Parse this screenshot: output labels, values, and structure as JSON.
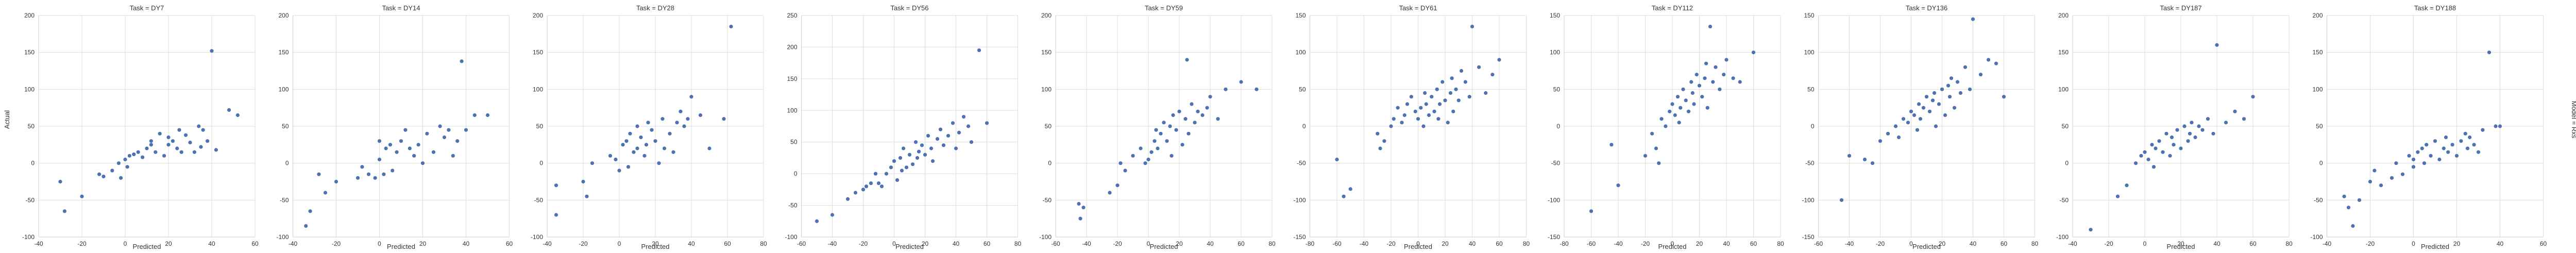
{
  "figure": {
    "ylabel": "Actual",
    "right_label": "Model = Rxs"
  },
  "colors": {
    "point": "#4c72b0",
    "grid": "#dddddd",
    "axis": "#cccccc"
  },
  "chart_data": [
    {
      "type": "scatter",
      "title": "Task = DY7",
      "xlabel": "Predicted",
      "ylabel": "Actual",
      "xlim": [
        -40,
        60
      ],
      "ylim": [
        -100,
        200
      ],
      "xticks": [
        -40,
        -20,
        0,
        20,
        40,
        60
      ],
      "yticks": [
        -100,
        -50,
        0,
        50,
        100,
        150,
        200
      ],
      "x": [
        -30,
        -28,
        -20,
        -12,
        -10,
        -6,
        -3,
        -2,
        0,
        1,
        2,
        4,
        6,
        8,
        10,
        12,
        12,
        14,
        16,
        18,
        20,
        20,
        22,
        24,
        25,
        26,
        28,
        30,
        32,
        34,
        35,
        36,
        38,
        40,
        42,
        48,
        52
      ],
      "y": [
        -25,
        -65,
        -45,
        -15,
        -18,
        -10,
        0,
        -20,
        5,
        -5,
        10,
        12,
        15,
        8,
        20,
        25,
        30,
        15,
        40,
        10,
        25,
        35,
        30,
        20,
        45,
        15,
        38,
        28,
        15,
        50,
        22,
        45,
        30,
        152,
        18,
        72,
        65
      ]
    },
    {
      "type": "scatter",
      "title": "Task = DY14",
      "xlabel": "Predicted",
      "ylabel": "Actual",
      "xlim": [
        -40,
        60
      ],
      "ylim": [
        -100,
        200
      ],
      "xticks": [
        -40,
        -20,
        0,
        20,
        40,
        60
      ],
      "yticks": [
        -100,
        -50,
        0,
        50,
        100,
        150,
        200
      ],
      "x": [
        -34,
        -32,
        -28,
        -25,
        -20,
        -10,
        -8,
        -5,
        -2,
        0,
        0,
        2,
        3,
        5,
        6,
        8,
        10,
        12,
        14,
        16,
        18,
        20,
        22,
        25,
        28,
        30,
        32,
        34,
        36,
        38,
        40,
        44,
        50
      ],
      "y": [
        -85,
        -65,
        -15,
        -40,
        -25,
        -20,
        -5,
        -15,
        -20,
        30,
        5,
        -15,
        20,
        25,
        -10,
        15,
        30,
        45,
        20,
        10,
        25,
        0,
        40,
        15,
        50,
        35,
        45,
        10,
        30,
        138,
        45,
        65,
        65
      ]
    },
    {
      "type": "scatter",
      "title": "Task = DY28",
      "xlabel": "Predicted",
      "ylabel": "Actual",
      "xlim": [
        -40,
        80
      ],
      "ylim": [
        -100,
        200
      ],
      "xticks": [
        -40,
        -20,
        0,
        20,
        40,
        60,
        80
      ],
      "yticks": [
        -100,
        -50,
        0,
        50,
        100,
        150,
        200
      ],
      "x": [
        -35,
        -35,
        -20,
        -18,
        -15,
        -5,
        -2,
        0,
        2,
        4,
        5,
        6,
        8,
        10,
        10,
        12,
        14,
        15,
        16,
        18,
        20,
        22,
        24,
        25,
        28,
        30,
        32,
        34,
        36,
        38,
        40,
        45,
        50,
        58,
        62
      ],
      "y": [
        -70,
        -30,
        -25,
        -45,
        0,
        10,
        5,
        -10,
        25,
        30,
        -5,
        40,
        15,
        20,
        50,
        35,
        10,
        25,
        55,
        45,
        30,
        0,
        60,
        20,
        40,
        15,
        55,
        70,
        50,
        60,
        90,
        65,
        20,
        60,
        185
      ]
    },
    {
      "type": "scatter",
      "title": "Task = DY56",
      "xlabel": "Predicted",
      "ylabel": "Actual",
      "xlim": [
        -60,
        80
      ],
      "ylim": [
        -100,
        250
      ],
      "xticks": [
        -60,
        -40,
        -20,
        0,
        20,
        40,
        60,
        80
      ],
      "yticks": [
        -100,
        -50,
        0,
        50,
        100,
        150,
        200,
        250
      ],
      "x": [
        -50,
        -40,
        -30,
        -25,
        -20,
        -18,
        -15,
        -12,
        -10,
        -8,
        -5,
        -2,
        0,
        2,
        4,
        5,
        6,
        8,
        10,
        12,
        14,
        15,
        16,
        18,
        20,
        22,
        24,
        25,
        28,
        30,
        32,
        35,
        38,
        40,
        42,
        45,
        48,
        50,
        55,
        60
      ],
      "y": [
        -75,
        -65,
        -40,
        -30,
        -25,
        -20,
        -15,
        0,
        -15,
        -20,
        0,
        10,
        20,
        -10,
        25,
        5,
        40,
        10,
        30,
        15,
        50,
        25,
        35,
        45,
        30,
        60,
        40,
        20,
        55,
        70,
        45,
        60,
        80,
        40,
        65,
        90,
        75,
        50,
        195,
        80
      ]
    },
    {
      "type": "scatter",
      "title": "Task = DY59",
      "xlabel": "Predicted",
      "ylabel": "Actual",
      "xlim": [
        -60,
        80
      ],
      "ylim": [
        -100,
        200
      ],
      "xticks": [
        -60,
        -40,
        -20,
        0,
        20,
        40,
        60,
        80
      ],
      "yticks": [
        -100,
        -50,
        0,
        50,
        100,
        150,
        200
      ],
      "x": [
        -45,
        -44,
        -42,
        -25,
        -20,
        -18,
        -15,
        -10,
        -5,
        -2,
        0,
        2,
        4,
        5,
        6,
        8,
        10,
        12,
        14,
        15,
        16,
        18,
        20,
        22,
        24,
        25,
        26,
        28,
        30,
        32,
        35,
        38,
        40,
        45,
        50,
        60,
        70
      ],
      "y": [
        -55,
        -75,
        -60,
        -40,
        -30,
        0,
        -10,
        10,
        20,
        0,
        5,
        15,
        30,
        45,
        20,
        40,
        55,
        30,
        50,
        10,
        65,
        45,
        70,
        25,
        60,
        140,
        40,
        80,
        55,
        70,
        65,
        75,
        90,
        60,
        100,
        110,
        100
      ]
    },
    {
      "type": "scatter",
      "title": "Task = DY61",
      "xlabel": "Predicted",
      "ylabel": "Actual",
      "xlim": [
        -80,
        80
      ],
      "ylim": [
        -150,
        150
      ],
      "xticks": [
        -80,
        -60,
        -40,
        -20,
        0,
        20,
        40,
        60,
        80
      ],
      "yticks": [
        -150,
        -100,
        -50,
        0,
        50,
        100,
        150
      ],
      "x": [
        -60,
        -55,
        -50,
        -30,
        -28,
        -25,
        -20,
        -18,
        -15,
        -12,
        -10,
        -8,
        -5,
        -2,
        0,
        2,
        4,
        5,
        6,
        8,
        10,
        12,
        14,
        15,
        16,
        18,
        20,
        22,
        24,
        25,
        26,
        28,
        30,
        32,
        35,
        38,
        40,
        45,
        50,
        55,
        60
      ],
      "y": [
        -45,
        -95,
        -85,
        -10,
        -30,
        -20,
        0,
        10,
        25,
        5,
        15,
        30,
        40,
        20,
        10,
        25,
        0,
        45,
        30,
        15,
        40,
        20,
        50,
        10,
        30,
        60,
        35,
        5,
        45,
        65,
        20,
        50,
        35,
        75,
        60,
        40,
        135,
        80,
        45,
        70,
        90
      ]
    },
    {
      "type": "scatter",
      "title": "Task = DY112",
      "xlabel": "Predicted",
      "ylabel": "Actual",
      "xlim": [
        -80,
        80
      ],
      "ylim": [
        -150,
        150
      ],
      "xticks": [
        -80,
        -60,
        -40,
        -20,
        0,
        20,
        40,
        60,
        80
      ],
      "yticks": [
        -150,
        -100,
        -50,
        0,
        50,
        100,
        150
      ],
      "x": [
        -60,
        -45,
        -40,
        -20,
        -15,
        -12,
        -10,
        -8,
        -5,
        -2,
        0,
        2,
        4,
        5,
        6,
        8,
        10,
        12,
        14,
        15,
        16,
        18,
        20,
        22,
        24,
        25,
        26,
        28,
        30,
        32,
        35,
        38,
        40,
        45,
        50,
        60
      ],
      "y": [
        -115,
        -25,
        -80,
        -40,
        -10,
        -30,
        -50,
        10,
        0,
        20,
        30,
        15,
        40,
        5,
        25,
        50,
        35,
        20,
        60,
        45,
        30,
        70,
        55,
        40,
        65,
        85,
        25,
        135,
        60,
        80,
        50,
        70,
        90,
        65,
        60,
        100
      ]
    },
    {
      "type": "scatter",
      "title": "Task = DY136",
      "xlabel": "Predicted",
      "ylabel": "Actual",
      "xlim": [
        -60,
        80
      ],
      "ylim": [
        -150,
        150
      ],
      "xticks": [
        -60,
        -40,
        -20,
        0,
        20,
        40,
        60,
        80
      ],
      "yticks": [
        -150,
        -100,
        -50,
        0,
        50,
        100,
        150
      ],
      "x": [
        -45,
        -40,
        -30,
        -25,
        -20,
        -15,
        -10,
        -8,
        -5,
        -2,
        0,
        2,
        4,
        5,
        6,
        8,
        10,
        12,
        14,
        15,
        16,
        18,
        20,
        22,
        24,
        25,
        26,
        28,
        30,
        32,
        35,
        38,
        40,
        45,
        50,
        55,
        60
      ],
      "y": [
        -100,
        -40,
        -45,
        -50,
        -20,
        -10,
        0,
        -15,
        10,
        5,
        20,
        15,
        -5,
        30,
        10,
        25,
        40,
        20,
        35,
        45,
        0,
        30,
        50,
        15,
        55,
        40,
        65,
        25,
        60,
        45,
        80,
        50,
        145,
        70,
        90,
        85,
        40
      ]
    },
    {
      "type": "scatter",
      "title": "Task = DY187",
      "xlabel": "Predicted",
      "ylabel": "Actual",
      "xlim": [
        -40,
        80
      ],
      "ylim": [
        -100,
        200
      ],
      "xticks": [
        -40,
        -20,
        0,
        20,
        40,
        60,
        80
      ],
      "yticks": [
        -100,
        -50,
        0,
        50,
        100,
        150,
        200
      ],
      "x": [
        -30,
        -15,
        -10,
        -5,
        -2,
        0,
        2,
        4,
        5,
        6,
        8,
        10,
        12,
        14,
        15,
        16,
        18,
        20,
        22,
        24,
        25,
        26,
        28,
        30,
        32,
        35,
        38,
        40,
        45,
        50,
        55,
        60
      ],
      "y": [
        -90,
        -45,
        -30,
        0,
        10,
        15,
        5,
        25,
        -5,
        20,
        30,
        15,
        40,
        10,
        35,
        25,
        45,
        20,
        50,
        30,
        40,
        55,
        35,
        50,
        45,
        60,
        40,
        160,
        55,
        70,
        60,
        90
      ]
    },
    {
      "type": "scatter",
      "title": "Task = DY188",
      "xlabel": "Predicted",
      "ylabel": "Actual",
      "xlim": [
        -40,
        60
      ],
      "ylim": [
        -100,
        200
      ],
      "xticks": [
        -40,
        -20,
        0,
        20,
        40,
        60
      ],
      "yticks": [
        -100,
        -50,
        0,
        50,
        100,
        150,
        200
      ],
      "x": [
        -32,
        -30,
        -28,
        -25,
        -20,
        -18,
        -15,
        -10,
        -8,
        -5,
        -2,
        0,
        0,
        2,
        4,
        5,
        6,
        8,
        10,
        12,
        14,
        15,
        16,
        18,
        20,
        22,
        24,
        25,
        26,
        28,
        30,
        32,
        35,
        38,
        40
      ],
      "y": [
        -45,
        -60,
        -85,
        -50,
        -25,
        -10,
        -30,
        -20,
        0,
        -15,
        10,
        5,
        -5,
        15,
        20,
        0,
        25,
        10,
        30,
        5,
        20,
        35,
        15,
        25,
        10,
        30,
        40,
        20,
        35,
        25,
        15,
        45,
        150,
        50,
        50
      ]
    }
  ]
}
